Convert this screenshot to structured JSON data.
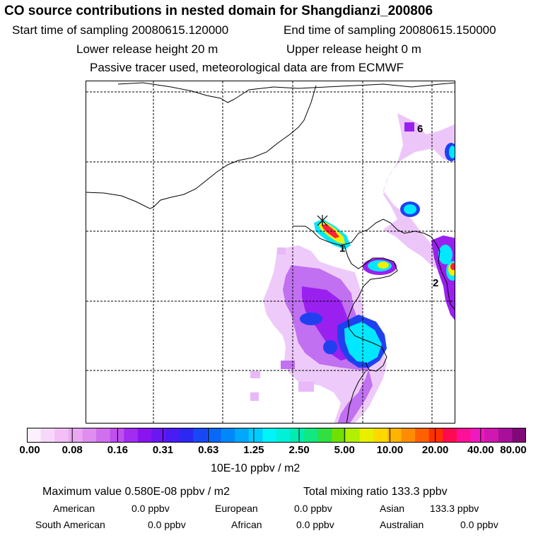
{
  "header": {
    "title": "CO  source contributions in nested domain for Shangdianzi_200806",
    "start_label": "Start time of sampling 20080615.120000",
    "end_label": "End time of sampling 20080615.150000",
    "lower_release": "Lower release height   20 m",
    "upper_release": "Upper release height    0 m",
    "note": "Passive tracer used, meteorological data are from ECMWF"
  },
  "map": {
    "labels": {
      "region_1": "1",
      "region_2": "2",
      "region_6": "6"
    },
    "colors": {
      "light_purple": "#e8b8f8",
      "purple": "#c070f0",
      "violet": "#9a20f0",
      "blue": "#2040f0",
      "cyan": "#00e8ff",
      "green": "#20e070",
      "yellow": "#f0f000",
      "orange": "#ffa000",
      "red": "#ff2040"
    }
  },
  "colorbar": {
    "colors": [
      "#fdf0fd",
      "#f8d8fa",
      "#f2c0f6",
      "#eaa8f3",
      "#df8ef0",
      "#d070ee",
      "#be50ee",
      "#a22cef",
      "#8a14f0",
      "#6a18f2",
      "#4a1cf4",
      "#2c28f4",
      "#1848f6",
      "#0868f8",
      "#0088fa",
      "#00a8fc",
      "#00ccfe",
      "#00f4fa",
      "#00f0d8",
      "#00ecb0",
      "#10e880",
      "#30e040",
      "#70e000",
      "#b0f000",
      "#e8f000",
      "#ffd800",
      "#ffb400",
      "#ff8c00",
      "#ff6000",
      "#ff3000",
      "#ff0a50",
      "#ff1098",
      "#f018c0",
      "#d018b0",
      "#a8109c",
      "#800878"
    ],
    "tick_labels": [
      "0.00",
      "0.08",
      "0.16",
      "0.31",
      "0.63",
      "1.25",
      "2.50",
      "5.00",
      "10.00",
      "20.00",
      "40.00",
      "80.00"
    ],
    "units": "10E-10 ppbv / m2"
  },
  "stats": {
    "max_value": "Maximum value  0.580E-08 ppbv / m2",
    "total_mixing": "Total mixing ratio      133.3 ppbv",
    "american_label": "American",
    "american_value": "0.0 ppbv",
    "european_label": "European",
    "european_value": "0.0 ppbv",
    "asian_label": "Asian",
    "asian_value": "133.3 ppbv",
    "south_american_label": "South American",
    "south_american_value": "0.0 ppbv",
    "african_label": "African",
    "african_value": "0.0 ppbv",
    "australian_label": "Australian",
    "australian_value": "0.0 ppbv"
  }
}
